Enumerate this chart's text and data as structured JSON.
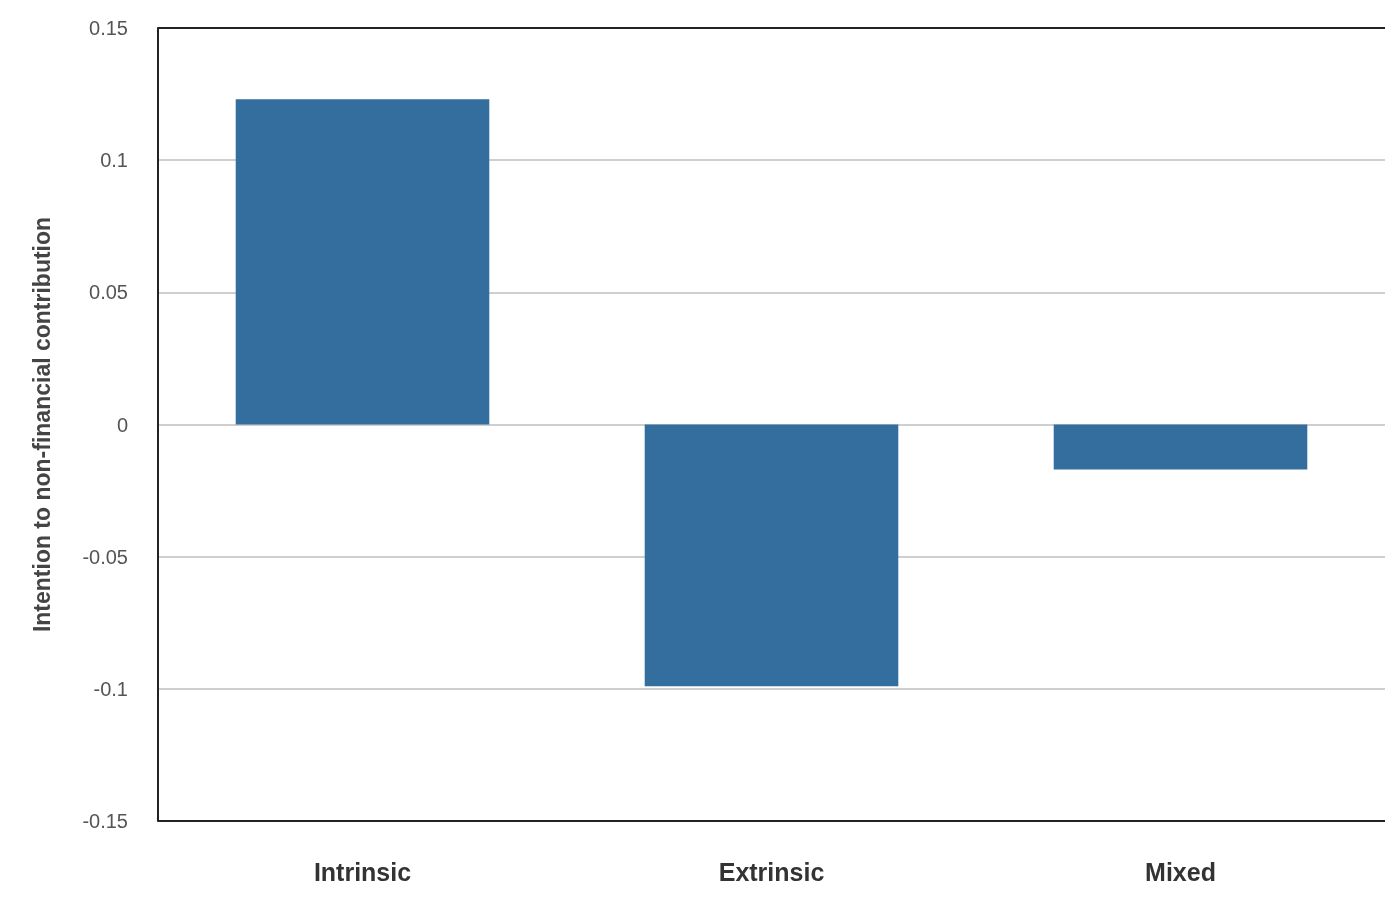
{
  "chart_data": {
    "type": "bar",
    "ylabel": "Intention to non-financial contribution",
    "categories": [
      "Intrinsic",
      "Extrinsic",
      "Mixed"
    ],
    "values": [
      0.123,
      -0.099,
      -0.017
    ],
    "color": "#336e9e",
    "ylim": [
      -0.15,
      0.15
    ],
    "yticks": [
      -0.15,
      -0.1,
      -0.05,
      0,
      0.05,
      0.1,
      0.15
    ],
    "grid": "y"
  }
}
